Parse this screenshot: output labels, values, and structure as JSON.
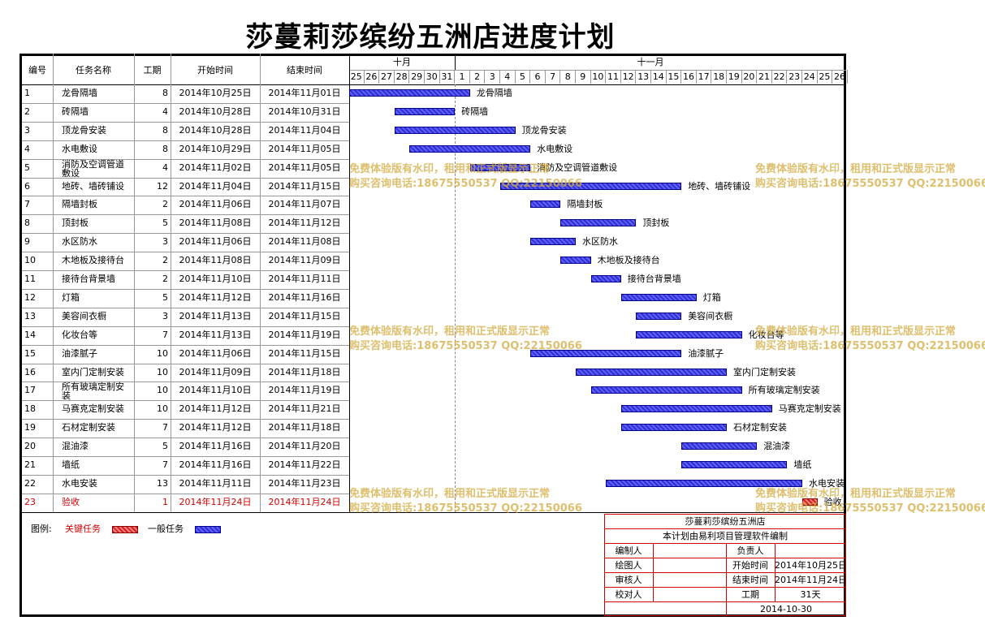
{
  "title": "莎蔓莉莎缤纷五洲店进度计划",
  "headers": {
    "id": "编号",
    "name": "任务名称",
    "duration": "工期",
    "start": "开始时间",
    "end": "结束时间"
  },
  "months": [
    {
      "label": "十月"
    },
    {
      "label": "十一月"
    }
  ],
  "days": [
    "25",
    "26",
    "27",
    "28",
    "29",
    "30",
    "31",
    "1",
    "2",
    "3",
    "4",
    "5",
    "6",
    "7",
    "8",
    "9",
    "10",
    "11",
    "12",
    "13",
    "14",
    "15",
    "16",
    "17",
    "18",
    "19",
    "20",
    "21",
    "22",
    "23",
    "24",
    "25",
    "26"
  ],
  "tasks": [
    {
      "id": "1",
      "name": "龙骨隔墙",
      "duration": "8",
      "start": "2014年10月25日",
      "end": "2014年11月01日",
      "s": 0,
      "e": 8,
      "critical": false
    },
    {
      "id": "2",
      "name": "砖隔墙",
      "duration": "4",
      "start": "2014年10月28日",
      "end": "2014年10月31日",
      "s": 3,
      "e": 7,
      "critical": false
    },
    {
      "id": "3",
      "name": "顶龙骨安装",
      "duration": "8",
      "start": "2014年10月28日",
      "end": "2014年11月04日",
      "s": 3,
      "e": 11,
      "critical": false
    },
    {
      "id": "4",
      "name": "水电敷设",
      "duration": "8",
      "start": "2014年10月29日",
      "end": "2014年11月05日",
      "s": 4,
      "e": 12,
      "critical": false
    },
    {
      "id": "5",
      "name": "消防及空调管道敷设",
      "duration": "4",
      "start": "2014年11月02日",
      "end": "2014年11月05日",
      "s": 8,
      "e": 12,
      "critical": false
    },
    {
      "id": "6",
      "name": "地砖、墙砖铺设",
      "duration": "12",
      "start": "2014年11月04日",
      "end": "2014年11月15日",
      "s": 10,
      "e": 22,
      "critical": false
    },
    {
      "id": "7",
      "name": "隔墙封板",
      "duration": "2",
      "start": "2014年11月06日",
      "end": "2014年11月07日",
      "s": 12,
      "e": 14,
      "critical": false
    },
    {
      "id": "8",
      "name": "顶封板",
      "duration": "5",
      "start": "2014年11月08日",
      "end": "2014年11月12日",
      "s": 14,
      "e": 19,
      "critical": false
    },
    {
      "id": "9",
      "name": "水区防水",
      "duration": "3",
      "start": "2014年11月06日",
      "end": "2014年11月08日",
      "s": 12,
      "e": 15,
      "critical": false
    },
    {
      "id": "10",
      "name": "木地板及接待台",
      "duration": "2",
      "start": "2014年11月08日",
      "end": "2014年11月09日",
      "s": 14,
      "e": 16,
      "critical": false
    },
    {
      "id": "11",
      "name": "接待台背景墙",
      "duration": "2",
      "start": "2014年11月10日",
      "end": "2014年11月11日",
      "s": 16,
      "e": 18,
      "critical": false
    },
    {
      "id": "12",
      "name": "灯箱",
      "duration": "5",
      "start": "2014年11月12日",
      "end": "2014年11月16日",
      "s": 18,
      "e": 23,
      "critical": false
    },
    {
      "id": "13",
      "name": "美容间衣橱",
      "duration": "3",
      "start": "2014年11月13日",
      "end": "2014年11月15日",
      "s": 19,
      "e": 22,
      "critical": false
    },
    {
      "id": "14",
      "name": "化妆台等",
      "duration": "7",
      "start": "2014年11月13日",
      "end": "2014年11月19日",
      "s": 19,
      "e": 26,
      "critical": false
    },
    {
      "id": "15",
      "name": "油漆腻子",
      "duration": "10",
      "start": "2014年11月06日",
      "end": "2014年11月15日",
      "s": 12,
      "e": 22,
      "critical": false
    },
    {
      "id": "16",
      "name": "室内门定制安装",
      "duration": "10",
      "start": "2014年11月09日",
      "end": "2014年11月18日",
      "s": 15,
      "e": 25,
      "critical": false
    },
    {
      "id": "17",
      "name": "所有玻璃定制安装",
      "duration": "10",
      "start": "2014年11月10日",
      "end": "2014年11月19日",
      "s": 16,
      "e": 26,
      "critical": false
    },
    {
      "id": "18",
      "name": "马赛克定制安装",
      "duration": "10",
      "start": "2014年11月12日",
      "end": "2014年11月21日",
      "s": 18,
      "e": 28,
      "critical": false
    },
    {
      "id": "19",
      "name": "石材定制安装",
      "duration": "7",
      "start": "2014年11月12日",
      "end": "2014年11月18日",
      "s": 18,
      "e": 25,
      "critical": false
    },
    {
      "id": "20",
      "name": "混油漆",
      "duration": "5",
      "start": "2014年11月16日",
      "end": "2014年11月20日",
      "s": 22,
      "e": 27,
      "critical": false
    },
    {
      "id": "21",
      "name": "墙纸",
      "duration": "7",
      "start": "2014年11月16日",
      "end": "2014年11月22日",
      "s": 22,
      "e": 29,
      "critical": false
    },
    {
      "id": "22",
      "name": "水电安装",
      "duration": "13",
      "start": "2014年11月11日",
      "end": "2014年11月23日",
      "s": 17,
      "e": 30,
      "critical": false
    },
    {
      "id": "23",
      "name": "验收",
      "duration": "1",
      "start": "2014年11月24日",
      "end": "2014年11月24日",
      "s": 30,
      "e": 31,
      "critical": true
    }
  ],
  "legend": {
    "label": "图例:",
    "critical": "关键任务",
    "normal": "一般任务"
  },
  "info": {
    "company": "莎蔓莉莎缤纷五洲店",
    "note": "本计划由易利项目管理软件编制",
    "editor_label": "编制人",
    "editor": "",
    "owner_label": "负责人",
    "owner": "",
    "drawer_label": "绘图人",
    "drawer": "",
    "start_label": "开始时间",
    "start": "2014年10月25日",
    "reviewer_label": "审核人",
    "reviewer": "",
    "end_label": "结束时间",
    "end": "2014年11月24日",
    "checker_label": "校对人",
    "checker": "",
    "duration_label": "工期",
    "duration": "31天",
    "date": "2014-10-30"
  },
  "watermark": {
    "line1": "免费体验版有水印，租用和正式版显示正常",
    "line2": "购买咨询电话:18675550537 QQ:22150066"
  },
  "colors": {
    "bar": "#3030d0",
    "critical": "#d02020",
    "critical_text": "#d00000"
  }
}
